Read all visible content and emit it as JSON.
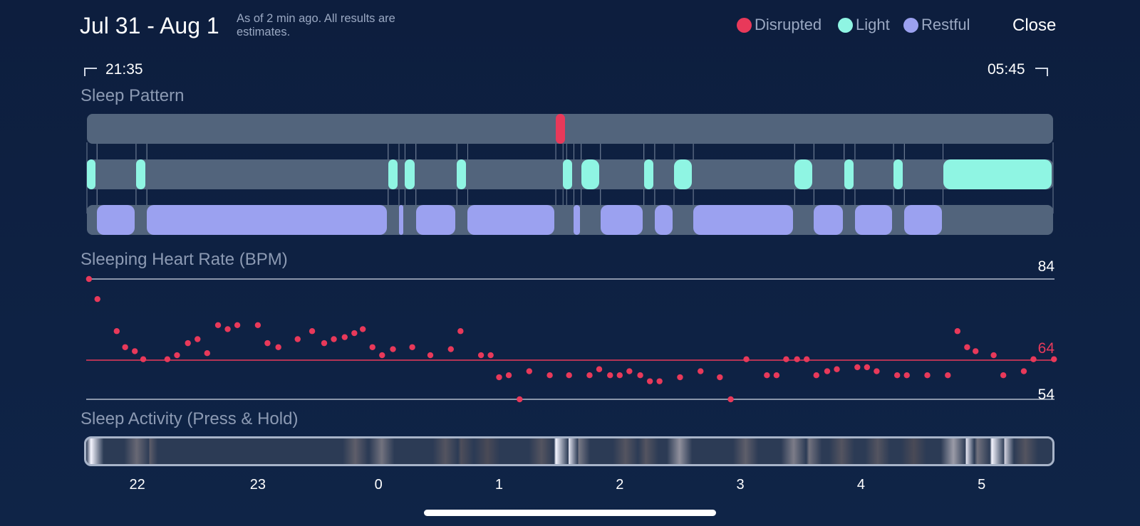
{
  "header": {
    "date_range": "Jul 31 - Aug 1",
    "note": "As of 2 min ago. All results are estimates.",
    "close_label": "Close"
  },
  "legend": [
    {
      "label": "Disrupted",
      "color": "#e8395a"
    },
    {
      "label": "Light",
      "color": "#8ff5e3"
    },
    {
      "label": "Restful",
      "color": "#9ba1f0"
    }
  ],
  "time_range": {
    "start": "21:35",
    "end": "05:45"
  },
  "sleep_pattern": {
    "title": "Sleep Pattern",
    "disrupted": [
      [
        1.47,
        1.56
      ]
    ],
    "light": [
      [
        21.583,
        21.667
      ],
      [
        21.99,
        22.08
      ],
      [
        0.08,
        0.17
      ],
      [
        0.22,
        0.31
      ],
      [
        0.65,
        0.74
      ],
      [
        1.53,
        1.62
      ],
      [
        1.68,
        1.84
      ],
      [
        2.2,
        2.29
      ],
      [
        2.45,
        2.61
      ],
      [
        3.45,
        3.61
      ],
      [
        3.86,
        3.95
      ],
      [
        4.27,
        4.36
      ],
      [
        4.68,
        5.67
      ]
    ],
    "restful": [
      [
        21.667,
        21.99
      ],
      [
        22.08,
        0.08
      ],
      [
        0.17,
        0.22
      ],
      [
        0.31,
        0.65
      ],
      [
        0.74,
        1.47
      ],
      [
        1.62,
        1.68
      ],
      [
        1.84,
        2.2
      ],
      [
        2.29,
        2.45
      ],
      [
        2.61,
        3.45
      ],
      [
        3.61,
        3.86
      ],
      [
        3.95,
        4.27
      ],
      [
        4.36,
        4.68
      ]
    ]
  },
  "heart_rate": {
    "title": "Sleeping Heart Rate (BPM)",
    "max_label": "84",
    "avg_label": "64",
    "min_label": "54"
  },
  "chart_data": {
    "type": "scatter",
    "title": "Sleeping Heart Rate (BPM)",
    "x_unit": "hour of night",
    "y_reference_lines": {
      "max": 84,
      "average": 64,
      "min": 54
    },
    "ylim": [
      54,
      84
    ],
    "x_ticks": [
      "22",
      "23",
      "0",
      "1",
      "2",
      "3",
      "4",
      "5"
    ],
    "points": [
      [
        21.6,
        84
      ],
      [
        21.67,
        79
      ],
      [
        21.83,
        71
      ],
      [
        21.9,
        67
      ],
      [
        21.98,
        66
      ],
      [
        22.05,
        64
      ],
      [
        22.25,
        64
      ],
      [
        22.33,
        65
      ],
      [
        22.42,
        68
      ],
      [
        22.5,
        69
      ],
      [
        22.58,
        65.5
      ],
      [
        22.67,
        72.5
      ],
      [
        22.75,
        71.5
      ],
      [
        22.83,
        72.5
      ],
      [
        23.0,
        72.5
      ],
      [
        23.08,
        68
      ],
      [
        23.17,
        67
      ],
      [
        23.33,
        69
      ],
      [
        23.45,
        71
      ],
      [
        23.55,
        68
      ],
      [
        23.63,
        69
      ],
      [
        23.72,
        69.5
      ],
      [
        23.8,
        70.5
      ],
      [
        23.87,
        71.5
      ],
      [
        23.95,
        67
      ],
      [
        0.03,
        65
      ],
      [
        0.12,
        66.5
      ],
      [
        0.28,
        67
      ],
      [
        0.43,
        65
      ],
      [
        0.6,
        66.5
      ],
      [
        0.68,
        71
      ],
      [
        0.85,
        65
      ],
      [
        0.93,
        65
      ],
      [
        1.0,
        59.5
      ],
      [
        1.08,
        60
      ],
      [
        1.17,
        54
      ],
      [
        1.25,
        61
      ],
      [
        1.42,
        60
      ],
      [
        1.58,
        60
      ],
      [
        1.75,
        60
      ],
      [
        1.83,
        61.5
      ],
      [
        1.92,
        60
      ],
      [
        2.0,
        60
      ],
      [
        2.08,
        61
      ],
      [
        2.17,
        60
      ],
      [
        2.25,
        58.5
      ],
      [
        2.33,
        58.5
      ],
      [
        2.5,
        59.5
      ],
      [
        2.67,
        61
      ],
      [
        2.83,
        59.5
      ],
      [
        2.92,
        54
      ],
      [
        3.05,
        64
      ],
      [
        3.22,
        60
      ],
      [
        3.3,
        60
      ],
      [
        3.38,
        64
      ],
      [
        3.47,
        64
      ],
      [
        3.55,
        64
      ],
      [
        3.63,
        60
      ],
      [
        3.72,
        61
      ],
      [
        3.8,
        61.5
      ],
      [
        3.97,
        62
      ],
      [
        4.05,
        62
      ],
      [
        4.13,
        61
      ],
      [
        4.3,
        60
      ],
      [
        4.38,
        60
      ],
      [
        4.55,
        60
      ],
      [
        4.72,
        60
      ],
      [
        4.8,
        71
      ],
      [
        4.88,
        67
      ],
      [
        4.95,
        66
      ],
      [
        5.1,
        65
      ],
      [
        5.18,
        60
      ],
      [
        5.35,
        61
      ],
      [
        5.43,
        64
      ],
      [
        5.6,
        64
      ]
    ]
  },
  "sleep_activity": {
    "title": "Sleep Activity (Press & Hold)",
    "highlights": [
      [
        21.6,
        0.95
      ],
      [
        21.98,
        0.25
      ],
      [
        22.05,
        0.2
      ],
      [
        23.8,
        0.2
      ],
      [
        0.02,
        0.3
      ],
      [
        0.55,
        0.15
      ],
      [
        0.68,
        0.12
      ],
      [
        0.9,
        0.1
      ],
      [
        1.35,
        0.15
      ],
      [
        1.47,
        0.95
      ],
      [
        1.55,
        0.9
      ],
      [
        1.65,
        0.35
      ],
      [
        2.05,
        0.15
      ],
      [
        2.22,
        0.15
      ],
      [
        2.5,
        0.45
      ],
      [
        3.05,
        0.2
      ],
      [
        3.45,
        0.35
      ],
      [
        3.58,
        0.3
      ],
      [
        3.85,
        0.15
      ],
      [
        4.15,
        0.15
      ],
      [
        4.45,
        0.1
      ],
      [
        4.78,
        0.5
      ],
      [
        4.85,
        0.9
      ],
      [
        4.98,
        0.3
      ],
      [
        5.1,
        0.95
      ],
      [
        5.18,
        0.8
      ],
      [
        5.38,
        0.15
      ]
    ]
  }
}
